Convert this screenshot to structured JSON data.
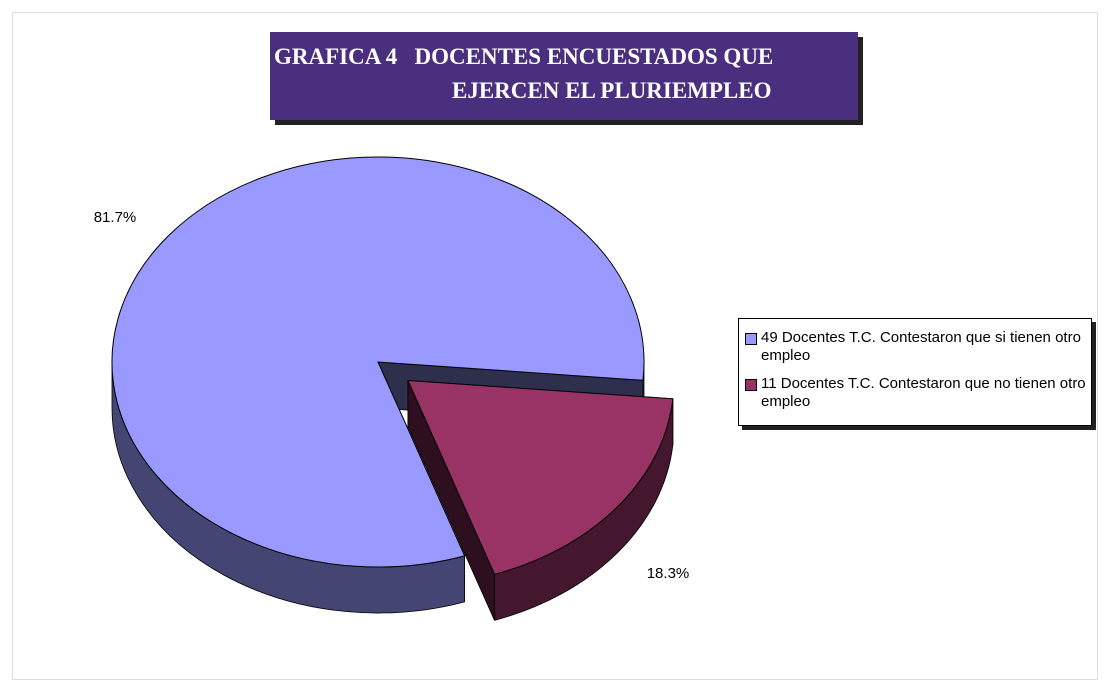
{
  "chart_data": {
    "type": "pie",
    "title": [
      "GRAFICA 4   DOCENTES ENCUESTADOS QUE",
      "EJERCEN EL PLURIEMPLEO"
    ],
    "categories": [
      "49 Docentes T.C. Contestaron que si tienen otro empleo",
      "11 Docentes T.C. Contestaron que no tienen otro empleo"
    ],
    "values": [
      81.7,
      18.3
    ],
    "value_labels": [
      "81.7%",
      "18.3%"
    ],
    "colors": [
      "#9999ff",
      "#993366"
    ],
    "legend": "right"
  }
}
